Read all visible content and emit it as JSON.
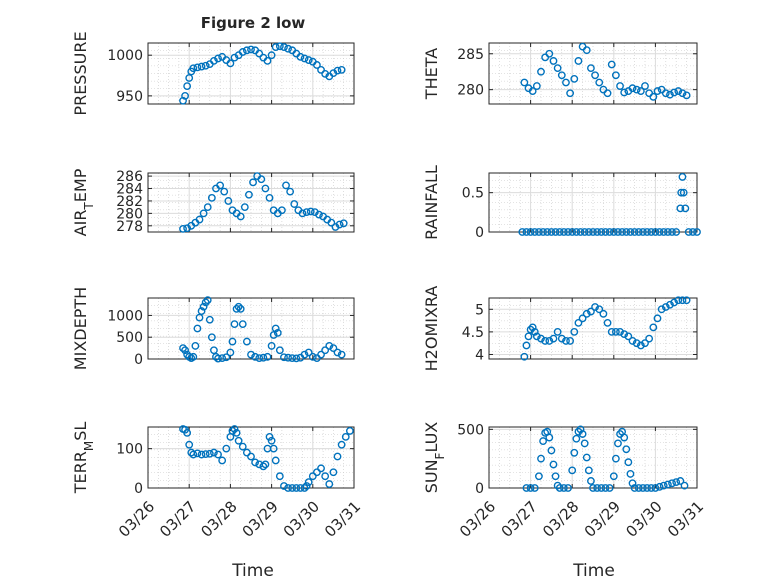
{
  "figure": {
    "title": "Figure 2 low",
    "xlabel": "Time",
    "x_tick_labels": [
      "03/26",
      "03/27",
      "03/28",
      "03/29",
      "03/30",
      "03/31"
    ],
    "marker_color": "#0072BD"
  },
  "chart_data": [
    {
      "type": "scatter",
      "ylabel": "PRESSURE",
      "yticks": [
        950,
        1000
      ],
      "ylim": [
        940,
        1015
      ],
      "xlim": [
        0,
        5
      ],
      "x": [
        0.85,
        0.9,
        0.95,
        1.0,
        1.05,
        1.1,
        1.2,
        1.3,
        1.4,
        1.5,
        1.6,
        1.7,
        1.8,
        1.9,
        2.0,
        2.1,
        2.2,
        2.3,
        2.4,
        2.5,
        2.6,
        2.7,
        2.8,
        2.9,
        3.0,
        3.1,
        3.2,
        3.3,
        3.4,
        3.5,
        3.6,
        3.7,
        3.8,
        3.9,
        4.0,
        4.1,
        4.2,
        4.3,
        4.4,
        4.5,
        4.6,
        4.7
      ],
      "y": [
        944,
        950,
        962,
        972,
        980,
        984,
        985,
        986,
        987,
        989,
        993,
        996,
        998,
        994,
        990,
        997,
        1000,
        1004,
        1006,
        1007,
        1006,
        1002,
        997,
        993,
        1000,
        1010,
        1011,
        1010,
        1008,
        1006,
        1002,
        998,
        996,
        994,
        992,
        988,
        982,
        977,
        974,
        978,
        981,
        982
      ]
    },
    {
      "type": "scatter",
      "ylabel": "THETA",
      "yticks": [
        280,
        285
      ],
      "ylim": [
        278,
        286.5
      ],
      "xlim": [
        0,
        5
      ],
      "x": [
        0.85,
        0.95,
        1.05,
        1.15,
        1.25,
        1.35,
        1.45,
        1.55,
        1.65,
        1.75,
        1.85,
        1.95,
        2.05,
        2.15,
        2.25,
        2.35,
        2.45,
        2.55,
        2.65,
        2.75,
        2.85,
        2.95,
        3.05,
        3.15,
        3.25,
        3.35,
        3.45,
        3.55,
        3.65,
        3.75,
        3.85,
        3.95,
        4.05,
        4.15,
        4.25,
        4.35,
        4.45,
        4.55,
        4.65,
        4.75
      ],
      "y": [
        281,
        280.2,
        279.8,
        280.5,
        282.5,
        284.5,
        285,
        284,
        283,
        282,
        281,
        279.5,
        281.5,
        284,
        286,
        285.5,
        283,
        282,
        281,
        280,
        279.5,
        283.5,
        282,
        280.5,
        279.6,
        279.8,
        280.2,
        280,
        279.8,
        280.5,
        279.5,
        279,
        279.8,
        280,
        279.5,
        279.3,
        279.6,
        279.8,
        279.5,
        279.2
      ]
    },
    {
      "type": "scatter",
      "ylabel": "AIR_TEMP",
      "yticks": [
        278,
        280,
        282,
        284,
        286
      ],
      "ylim": [
        277,
        286.5
      ],
      "xlim": [
        0,
        5
      ],
      "x": [
        0.85,
        0.95,
        1.05,
        1.15,
        1.25,
        1.35,
        1.45,
        1.55,
        1.65,
        1.75,
        1.85,
        1.95,
        2.05,
        2.15,
        2.25,
        2.35,
        2.45,
        2.55,
        2.65,
        2.75,
        2.85,
        2.95,
        3.05,
        3.15,
        3.25,
        3.35,
        3.45,
        3.55,
        3.65,
        3.75,
        3.85,
        3.95,
        4.05,
        4.15,
        4.25,
        4.35,
        4.45,
        4.55,
        4.65,
        4.75
      ],
      "y": [
        277.5,
        277.6,
        278,
        278.5,
        279,
        280,
        281,
        282.5,
        284,
        284.5,
        283.5,
        282,
        280.5,
        280,
        279.5,
        281,
        283,
        285,
        286,
        285.5,
        284,
        282.5,
        280.5,
        280,
        280.5,
        284.5,
        283.5,
        281.5,
        280.5,
        280,
        280.2,
        280.3,
        280.2,
        279.8,
        279.5,
        279,
        278.5,
        277.8,
        278.2,
        278.4
      ]
    },
    {
      "type": "scatter",
      "ylabel": "RAINFALL",
      "yticks": [
        0,
        0.5
      ],
      "ylim": [
        0,
        0.75
      ],
      "xlim": [
        0,
        5
      ],
      "x": [
        0.8,
        0.9,
        1.0,
        1.1,
        1.2,
        1.3,
        1.4,
        1.5,
        1.6,
        1.7,
        1.8,
        1.9,
        2.0,
        2.1,
        2.2,
        2.3,
        2.4,
        2.5,
        2.6,
        2.7,
        2.8,
        2.9,
        3.0,
        3.1,
        3.2,
        3.3,
        3.4,
        3.5,
        3.6,
        3.7,
        3.8,
        3.9,
        4.0,
        4.1,
        4.2,
        4.3,
        4.4,
        4.5,
        4.6,
        4.62,
        4.65,
        4.68,
        4.72,
        4.8,
        4.9,
        5.0
      ],
      "y": [
        0,
        0,
        0,
        0,
        0,
        0,
        0,
        0,
        0,
        0,
        0,
        0,
        0,
        0,
        0,
        0,
        0,
        0,
        0,
        0,
        0,
        0,
        0,
        0,
        0,
        0,
        0,
        0,
        0,
        0,
        0,
        0,
        0,
        0,
        0,
        0,
        0,
        0,
        0.3,
        0.5,
        0.7,
        0.5,
        0.3,
        0,
        0,
        0
      ]
    },
    {
      "type": "scatter",
      "ylabel": "MIXDEPTH",
      "yticks": [
        0,
        500,
        1000
      ],
      "ylim": [
        0,
        1400
      ],
      "xlim": [
        0,
        5
      ],
      "x": [
        0.85,
        0.9,
        0.95,
        1.0,
        1.05,
        1.1,
        1.15,
        1.2,
        1.25,
        1.3,
        1.35,
        1.4,
        1.45,
        1.5,
        1.55,
        1.6,
        1.65,
        1.7,
        1.8,
        1.9,
        2.0,
        2.05,
        2.1,
        2.15,
        2.2,
        2.25,
        2.3,
        2.4,
        2.5,
        2.6,
        2.7,
        2.8,
        2.9,
        3.0,
        3.05,
        3.1,
        3.15,
        3.2,
        3.3,
        3.4,
        3.5,
        3.6,
        3.7,
        3.8,
        3.9,
        4.0,
        4.1,
        4.2,
        4.3,
        4.4,
        4.5,
        4.6,
        4.7
      ],
      "y": [
        250,
        200,
        100,
        50,
        20,
        50,
        300,
        700,
        950,
        1100,
        1200,
        1300,
        1350,
        900,
        500,
        200,
        50,
        10,
        20,
        40,
        150,
        400,
        800,
        1150,
        1200,
        1150,
        800,
        400,
        100,
        50,
        20,
        30,
        50,
        300,
        550,
        700,
        600,
        200,
        40,
        30,
        20,
        15,
        30,
        100,
        150,
        50,
        20,
        100,
        200,
        300,
        250,
        150,
        100
      ]
    },
    {
      "type": "scatter",
      "ylabel": "H2OMIXRA",
      "yticks": [
        4,
        4.5,
        5
      ],
      "ylim": [
        3.9,
        5.25
      ],
      "xlim": [
        0,
        5
      ],
      "x": [
        0.85,
        0.9,
        0.95,
        1.0,
        1.05,
        1.1,
        1.15,
        1.25,
        1.35,
        1.45,
        1.55,
        1.65,
        1.75,
        1.85,
        1.95,
        2.05,
        2.15,
        2.25,
        2.35,
        2.45,
        2.55,
        2.65,
        2.75,
        2.85,
        2.95,
        3.05,
        3.15,
        3.25,
        3.35,
        3.45,
        3.55,
        3.65,
        3.75,
        3.85,
        3.95,
        4.05,
        4.15,
        4.25,
        4.35,
        4.45,
        4.55,
        4.65,
        4.75
      ],
      "y": [
        3.95,
        4.2,
        4.4,
        4.55,
        4.6,
        4.5,
        4.4,
        4.35,
        4.3,
        4.3,
        4.35,
        4.5,
        4.35,
        4.3,
        4.3,
        4.5,
        4.7,
        4.8,
        4.9,
        4.95,
        5.05,
        5.0,
        4.9,
        4.7,
        4.5,
        4.5,
        4.5,
        4.45,
        4.4,
        4.3,
        4.25,
        4.2,
        4.25,
        4.35,
        4.6,
        4.8,
        5.0,
        5.05,
        5.1,
        5.15,
        5.2,
        5.2,
        5.2
      ]
    },
    {
      "type": "scatter",
      "ylabel": "TERR_MSL",
      "yticks": [
        0,
        100
      ],
      "ylim": [
        0,
        155
      ],
      "xlim": [
        0,
        5
      ],
      "x": [
        0.85,
        0.9,
        0.95,
        1.0,
        1.05,
        1.1,
        1.2,
        1.3,
        1.4,
        1.5,
        1.6,
        1.7,
        1.8,
        1.9,
        2.0,
        2.05,
        2.1,
        2.15,
        2.2,
        2.3,
        2.4,
        2.5,
        2.6,
        2.7,
        2.8,
        2.85,
        2.9,
        2.95,
        3.0,
        3.05,
        3.1,
        3.2,
        3.3,
        3.4,
        3.5,
        3.6,
        3.7,
        3.8,
        3.85,
        3.9,
        4.0,
        4.1,
        4.2,
        4.3,
        4.4,
        4.5,
        4.6,
        4.7,
        4.8,
        4.9
      ],
      "y": [
        150,
        148,
        140,
        110,
        90,
        85,
        88,
        85,
        86,
        87,
        90,
        85,
        70,
        100,
        130,
        145,
        150,
        140,
        120,
        105,
        90,
        80,
        65,
        60,
        55,
        60,
        100,
        130,
        120,
        100,
        70,
        30,
        5,
        0,
        0,
        0,
        0,
        0,
        5,
        15,
        30,
        40,
        50,
        30,
        10,
        40,
        80,
        110,
        130,
        145
      ]
    },
    {
      "type": "scatter",
      "ylabel": "SUN_FLUX",
      "yticks": [
        0,
        500
      ],
      "ylim": [
        0,
        520
      ],
      "xlim": [
        0,
        5
      ],
      "x": [
        0.9,
        1.0,
        1.1,
        1.2,
        1.25,
        1.3,
        1.35,
        1.4,
        1.45,
        1.5,
        1.55,
        1.6,
        1.65,
        1.7,
        1.8,
        1.9,
        2.0,
        2.05,
        2.1,
        2.15,
        2.2,
        2.25,
        2.3,
        2.35,
        2.4,
        2.45,
        2.5,
        2.6,
        2.7,
        2.8,
        2.9,
        3.0,
        3.05,
        3.1,
        3.15,
        3.2,
        3.25,
        3.3,
        3.35,
        3.4,
        3.45,
        3.5,
        3.6,
        3.7,
        3.8,
        3.9,
        4.0,
        4.1,
        4.2,
        4.3,
        4.4,
        4.5,
        4.6,
        4.7
      ],
      "y": [
        0,
        0,
        0,
        100,
        250,
        400,
        470,
        480,
        430,
        320,
        200,
        100,
        20,
        0,
        0,
        0,
        150,
        300,
        420,
        480,
        500,
        460,
        380,
        260,
        150,
        60,
        0,
        0,
        0,
        0,
        0,
        100,
        250,
        380,
        460,
        480,
        430,
        330,
        220,
        120,
        40,
        0,
        0,
        0,
        0,
        0,
        0,
        10,
        20,
        30,
        40,
        50,
        60,
        20
      ]
    }
  ]
}
